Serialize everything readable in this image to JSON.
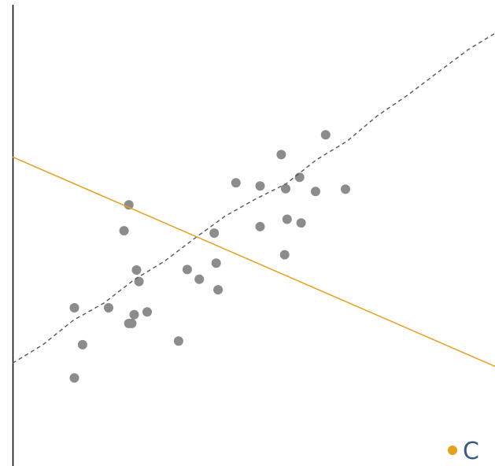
{
  "chart_data": {
    "type": "scatter",
    "title": "",
    "xlabel": "",
    "ylabel": "",
    "xlim": [
      0,
      10
    ],
    "ylim": [
      0,
      10
    ],
    "grid": false,
    "legend_position": "bottom-right",
    "colors": {
      "points": "#8c8c8c",
      "trend": "#555555",
      "series_c": "#e5a11c",
      "legend_text": "#3b5b87",
      "axis": "#000000"
    },
    "points": [
      {
        "x": 1.28,
        "y": 1.91
      },
      {
        "x": 1.45,
        "y": 2.63
      },
      {
        "x": 1.28,
        "y": 3.43
      },
      {
        "x": 1.99,
        "y": 3.43
      },
      {
        "x": 2.41,
        "y": 3.09
      },
      {
        "x": 2.47,
        "y": 3.09
      },
      {
        "x": 2.52,
        "y": 3.28
      },
      {
        "x": 2.79,
        "y": 3.34
      },
      {
        "x": 2.62,
        "y": 4.0
      },
      {
        "x": 2.57,
        "y": 4.25
      },
      {
        "x": 3.44,
        "y": 2.71
      },
      {
        "x": 3.62,
        "y": 4.26
      },
      {
        "x": 3.87,
        "y": 4.05
      },
      {
        "x": 4.26,
        "y": 3.82
      },
      {
        "x": 4.22,
        "y": 4.4
      },
      {
        "x": 4.18,
        "y": 5.05
      },
      {
        "x": 2.31,
        "y": 5.1
      },
      {
        "x": 2.41,
        "y": 5.66
      },
      {
        "x": 4.63,
        "y": 6.14
      },
      {
        "x": 5.13,
        "y": 6.07
      },
      {
        "x": 5.13,
        "y": 5.19
      },
      {
        "x": 5.64,
        "y": 4.58
      },
      {
        "x": 5.69,
        "y": 5.35
      },
      {
        "x": 5.66,
        "y": 6.01
      },
      {
        "x": 5.95,
        "y": 6.26
      },
      {
        "x": 5.98,
        "y": 5.27
      },
      {
        "x": 6.28,
        "y": 5.95
      },
      {
        "x": 6.9,
        "y": 6.0
      },
      {
        "x": 5.57,
        "y": 6.75
      },
      {
        "x": 6.49,
        "y": 7.18
      }
    ],
    "trend_line": {
      "style": "dashed",
      "x": [
        0.0,
        0.63,
        1.26,
        1.89,
        2.52,
        3.15,
        3.78,
        4.41,
        5.04,
        5.67,
        6.3,
        6.93,
        7.56,
        8.19,
        8.82,
        9.45,
        10.0
      ],
      "y": [
        2.23,
        2.63,
        3.16,
        3.53,
        4.04,
        4.44,
        4.94,
        5.42,
        5.79,
        6.12,
        6.64,
        7.04,
        7.59,
        8.04,
        8.54,
        9.03,
        9.38
      ]
    },
    "series": [
      {
        "name": "C",
        "type": "line",
        "x": [
          0,
          10
        ],
        "y": [
          6.7,
          2.16
        ]
      }
    ]
  }
}
